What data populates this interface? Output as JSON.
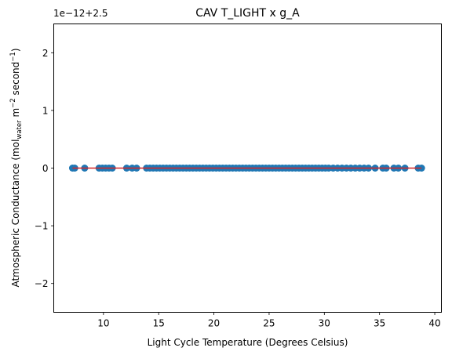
{
  "chart_data": {
    "type": "scatter",
    "title": "CAV T_LIGHT x g_A",
    "xlabel": "Light Cycle Temperature (Degrees Celsius)",
    "ylabel": {
      "prefix": "Atmospheric Conductance (mol",
      "sub": "water",
      "mid1": " m",
      "sup1": "−2",
      "mid2": " second",
      "sup2": "−1",
      "suffix": ")"
    },
    "y_offset_text": "1e−12+2.5",
    "xlim": [
      5.5,
      40.6
    ],
    "ylim": [
      -2.5,
      2.5
    ],
    "x_ticks": [
      10,
      15,
      20,
      25,
      30,
      35,
      40
    ],
    "x_tick_labels": [
      "10",
      "15",
      "20",
      "25",
      "30",
      "35",
      "40"
    ],
    "y_ticks": [
      -2,
      -1,
      0,
      1,
      2
    ],
    "y_tick_labels": [
      "−2",
      "−1",
      "0",
      "1",
      "2"
    ],
    "grid": false,
    "point_color": "#1f77b4",
    "fit_line_color": "#d62728",
    "fit_line": {
      "x": [
        7.2,
        38.8
      ],
      "y": [
        0,
        0
      ]
    },
    "x": [
      7.2,
      7.4,
      8.3,
      9.6,
      9.9,
      10.2,
      10.5,
      10.8,
      12.1,
      12.6,
      13.0,
      13.9,
      14.2,
      14.5,
      14.8,
      15.1,
      15.4,
      15.7,
      16.0,
      16.3,
      16.6,
      16.9,
      17.2,
      17.5,
      17.8,
      18.1,
      18.4,
      18.7,
      19.0,
      19.3,
      19.6,
      19.9,
      20.2,
      20.5,
      20.8,
      21.1,
      21.4,
      21.7,
      22.0,
      22.3,
      22.6,
      22.9,
      23.2,
      23.5,
      23.8,
      24.1,
      24.4,
      24.7,
      25.0,
      25.3,
      25.6,
      25.9,
      26.2,
      26.5,
      26.8,
      27.1,
      27.4,
      27.7,
      28.0,
      28.3,
      28.6,
      28.9,
      29.2,
      29.5,
      29.8,
      30.1,
      30.4,
      30.8,
      31.2,
      31.6,
      32.0,
      32.4,
      32.8,
      33.2,
      33.6,
      34.0,
      34.6,
      35.3,
      35.6,
      36.3,
      36.7,
      37.3,
      38.5,
      38.8
    ],
    "y": [
      0,
      0,
      0,
      0,
      0,
      0,
      0,
      0,
      0,
      0,
      0,
      0,
      0,
      0,
      0,
      0,
      0,
      0,
      0,
      0,
      0,
      0,
      0,
      0,
      0,
      0,
      0,
      0,
      0,
      0,
      0,
      0,
      0,
      0,
      0,
      0,
      0,
      0,
      0,
      0,
      0,
      0,
      0,
      0,
      0,
      0,
      0,
      0,
      0,
      0,
      0,
      0,
      0,
      0,
      0,
      0,
      0,
      0,
      0,
      0,
      0,
      0,
      0,
      0,
      0,
      0,
      0,
      0,
      0,
      0,
      0,
      0,
      0,
      0,
      0,
      0,
      0,
      0,
      0,
      0,
      0,
      0,
      0,
      0
    ]
  }
}
